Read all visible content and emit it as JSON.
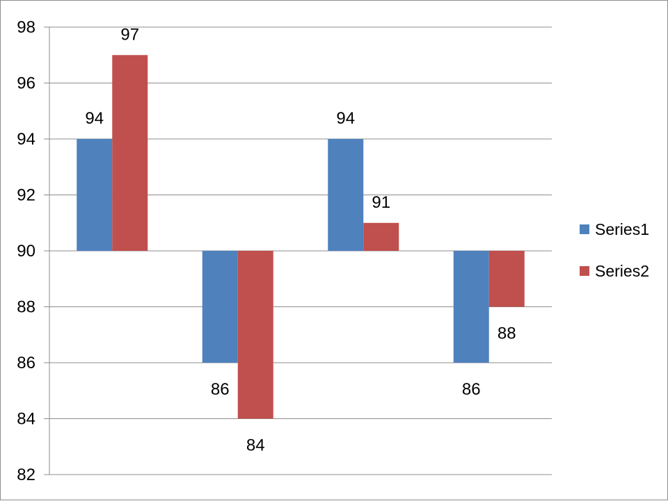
{
  "chart_data": {
    "type": "bar",
    "categories": [
      "",
      "",
      "",
      ""
    ],
    "series": [
      {
        "name": "Series1",
        "values": [
          94,
          86,
          94,
          86
        ],
        "color": "#4f81bd"
      },
      {
        "name": "Series2",
        "values": [
          97,
          84,
          91,
          88
        ],
        "color": "#c0504d"
      }
    ],
    "baseline": 90,
    "ylim": [
      82,
      98
    ],
    "yticks": [
      82,
      84,
      86,
      88,
      90,
      92,
      94,
      96,
      98
    ],
    "grid": true,
    "legend_position": "right",
    "data_labels": true,
    "title": "",
    "xlabel": "",
    "ylabel": ""
  },
  "legend": {
    "items": [
      {
        "label": "Series1",
        "color": "#4f81bd"
      },
      {
        "label": "Series2",
        "color": "#c0504d"
      }
    ]
  }
}
